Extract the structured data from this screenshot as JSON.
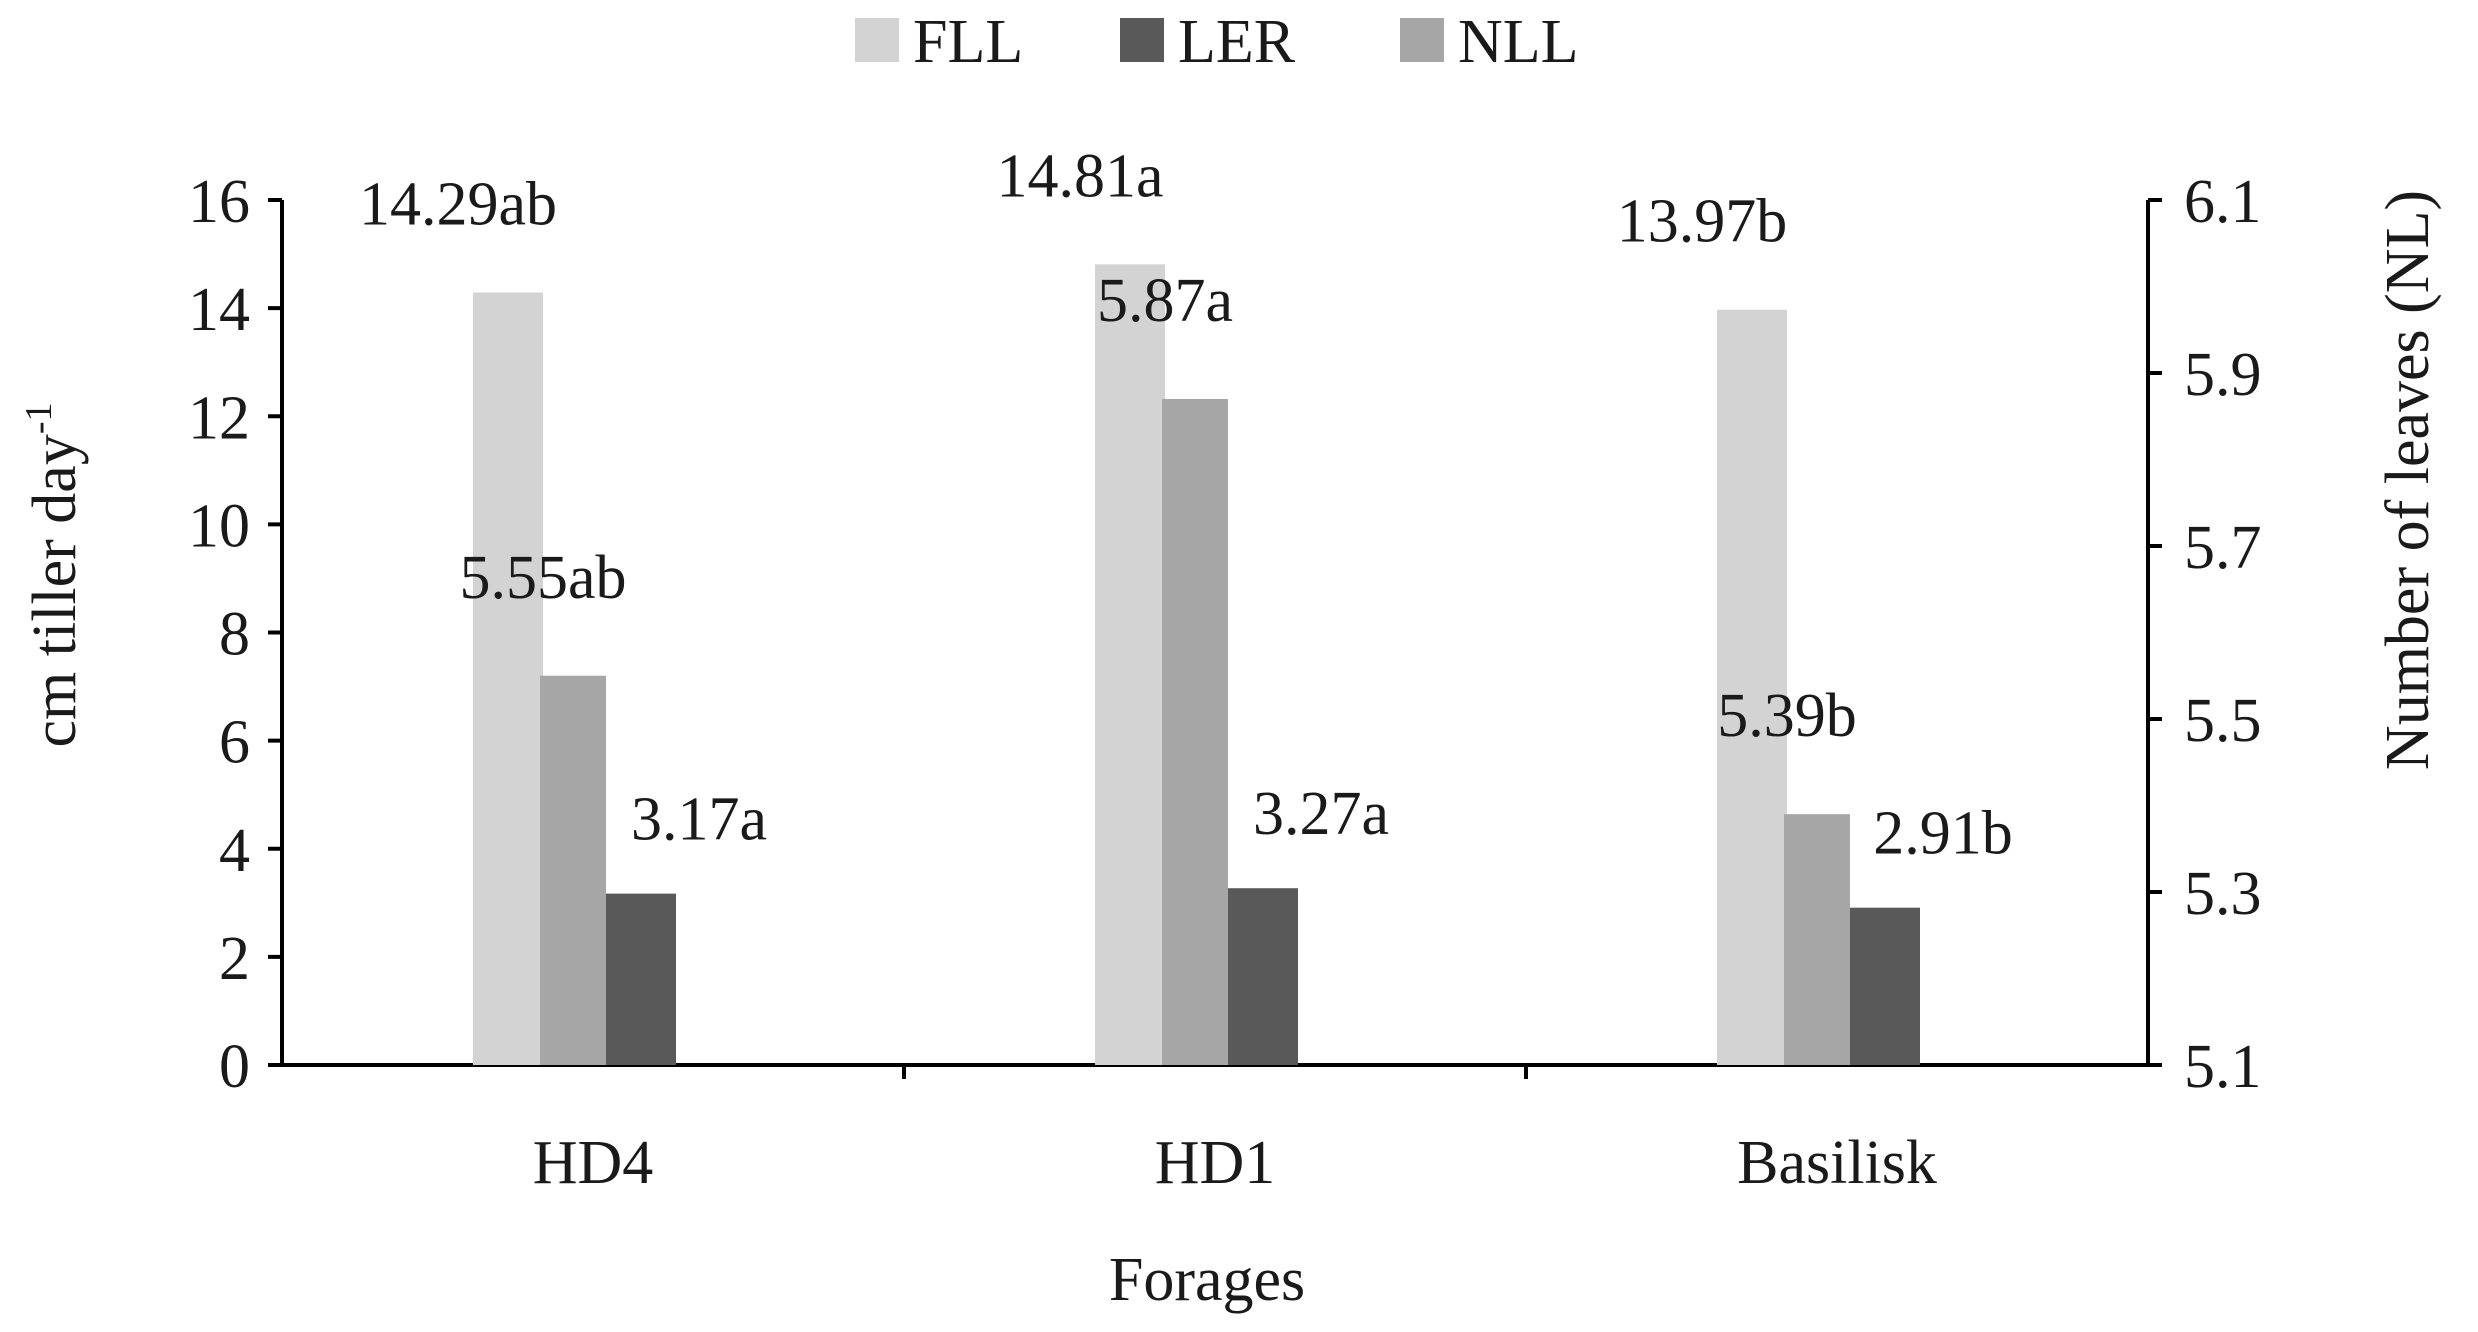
{
  "chart_data": {
    "type": "bar",
    "categories": [
      "HD4",
      "HD1",
      "Basilisk"
    ],
    "xlabel": "Forages",
    "ylabel_left": "cm tiller day",
    "ylabel_left_sup": "-1",
    "ylabel_right": "Number of leaves (NL)",
    "ylim_left": [
      0,
      16
    ],
    "yticks_left": [
      0,
      2,
      4,
      6,
      8,
      10,
      12,
      14,
      16
    ],
    "ylim_right": [
      5.1,
      6.1
    ],
    "yticks_right": [
      "5.1",
      "5.3",
      "5.5",
      "5.7",
      "5.9",
      "6.1"
    ],
    "legend": [
      {
        "name": "FLL",
        "color": "#d3d3d3"
      },
      {
        "name": "LER",
        "color": "#595959"
      },
      {
        "name": "NLL",
        "color": "#a6a6a6"
      }
    ],
    "series": [
      {
        "name": "FLL",
        "axis": "left",
        "color": "#d3d3d3",
        "values": [
          14.29,
          14.81,
          13.97
        ],
        "labels": [
          "14.29ab",
          "14.81a",
          "13.97b"
        ]
      },
      {
        "name": "NLL",
        "axis": "right",
        "color": "#a6a6a6",
        "values": [
          5.55,
          5.87,
          5.39
        ],
        "labels": [
          "5.55ab",
          "5.87a",
          "5.39b"
        ]
      },
      {
        "name": "LER",
        "axis": "left",
        "color": "#595959",
        "values": [
          3.17,
          3.27,
          2.91
        ],
        "labels": [
          "3.17a",
          "3.27a",
          "2.91b"
        ]
      }
    ]
  }
}
